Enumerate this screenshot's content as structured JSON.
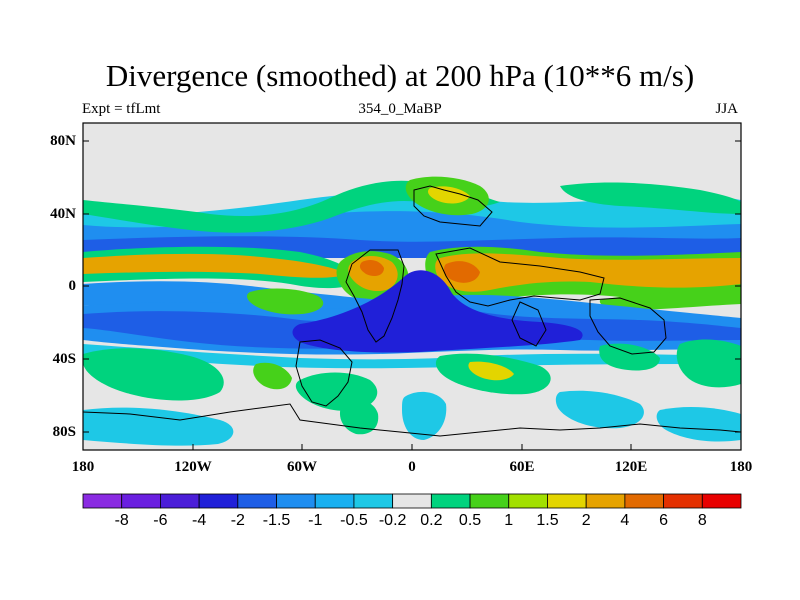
{
  "title": "Divergence (smoothed) at 200 hPa (10**6 m/s)",
  "subtitle_left": "Expt = tfLmt",
  "subtitle_center": "354_0_MaBP",
  "subtitle_right": "JJA",
  "y_axis": {
    "labels": [
      "80N",
      "40N",
      "0",
      "40S",
      "80S"
    ]
  },
  "x_axis": {
    "labels": [
      "180",
      "120W",
      "60W",
      "0",
      "60E",
      "120E",
      "180"
    ]
  },
  "colorbar": {
    "labels": [
      "-8",
      "-6",
      "-4",
      "-2",
      "-1.5",
      "-1",
      "-0.5",
      "-0.2",
      "0.2",
      "0.5",
      "1",
      "1.5",
      "2",
      "4",
      "6",
      "8"
    ],
    "colors": [
      "#8a2be2",
      "#6a1fe0",
      "#4b1ed8",
      "#2020d8",
      "#1e5ee6",
      "#1f8ef0",
      "#19b0f0",
      "#1ec8e6",
      "#e6e6e6",
      "#00d37e",
      "#46d11a",
      "#a2e000",
      "#e3d500",
      "#e6a300",
      "#e26a00",
      "#e43000",
      "#e80000"
    ]
  },
  "map_colors": {
    "background": "#e6e6e6",
    "neg_weak": "#1ec8e6",
    "neg_mid": "#1f8ef0",
    "neg_strong": "#1e5ee6",
    "neg_max": "#2020d8",
    "pos_weak": "#00d37e",
    "pos_mid": "#46d11a",
    "pos_strong": "#a2e000",
    "pos_yellow": "#e3d500",
    "pos_orange": "#e6a300",
    "pos_red": "#e26a00"
  }
}
